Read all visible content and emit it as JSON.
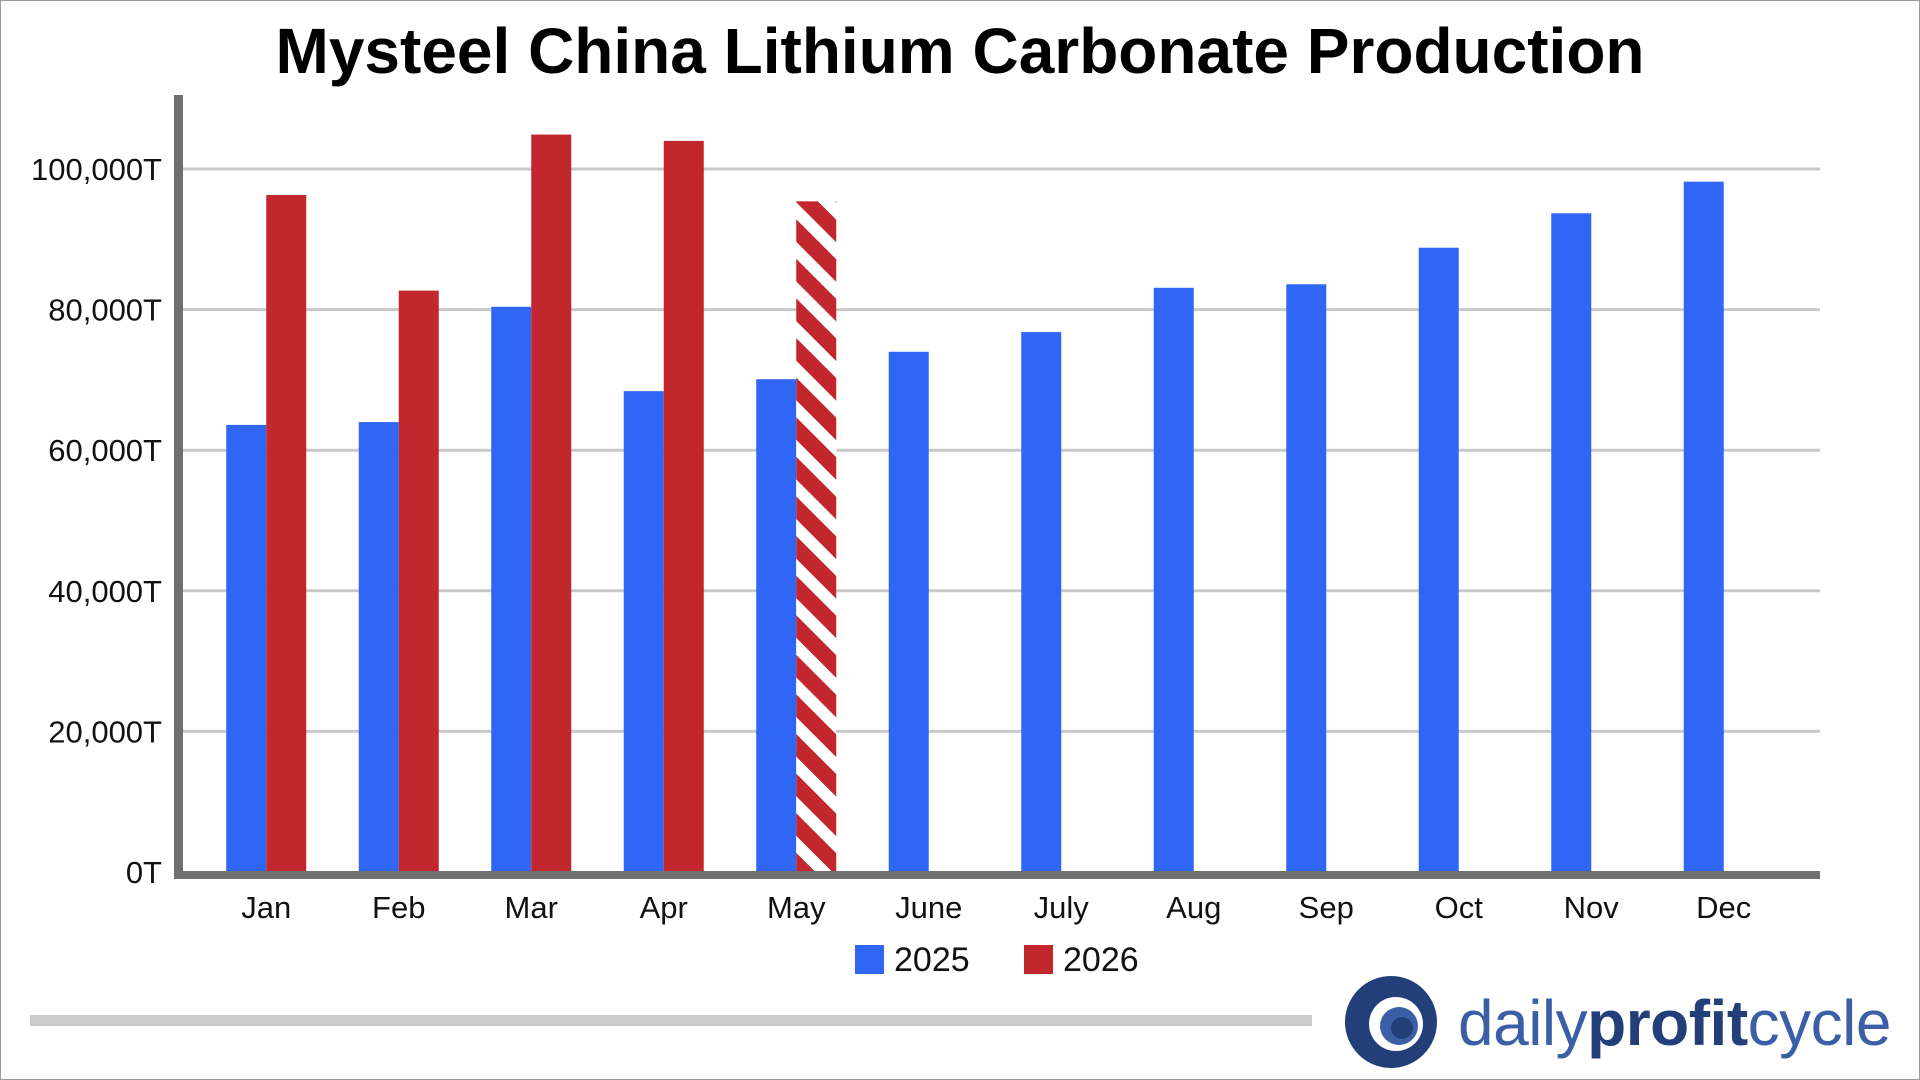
{
  "chart_data": {
    "type": "bar",
    "title": "Mysteel China Lithium Carbonate Production",
    "xlabel": "",
    "ylabel": "",
    "ylim": [
      0,
      110000
    ],
    "yticks": [
      0,
      20000,
      40000,
      60000,
      80000,
      100000
    ],
    "ytick_labels": [
      "0T",
      "20,000T",
      "40,000T",
      "60,000T",
      "80,000T",
      "100,000T"
    ],
    "grid": true,
    "legend_position": "bottom-center",
    "categories": [
      "Jan",
      "Feb",
      "Mar",
      "Apr",
      "May",
      "June",
      "July",
      "Aug",
      "Sep",
      "Oct",
      "Nov",
      "Dec"
    ],
    "series": [
      {
        "name": "2025",
        "color": "#2f66f5",
        "values": [
          63600,
          64000,
          80400,
          68400,
          70100,
          74000,
          76800,
          83100,
          83600,
          88800,
          93700,
          98200
        ]
      },
      {
        "name": "2026",
        "color": "#c1272d",
        "values": [
          96300,
          82700,
          104900,
          104000,
          95400,
          null,
          null,
          null,
          null,
          null,
          null,
          null
        ],
        "hatched_categories": [
          "May"
        ]
      }
    ]
  },
  "brand": {
    "prefix": "daily",
    "emphasis": "profit",
    "suffix": "cycle",
    "logo_icon": "circle-logo-icon",
    "color_dark": "#233f79",
    "color_light": "#3a5fa6"
  }
}
